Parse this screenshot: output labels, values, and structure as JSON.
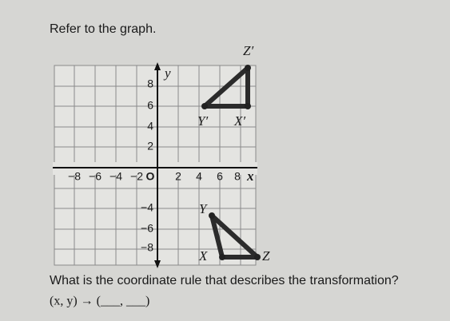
{
  "header": {
    "title": "Refer to the graph."
  },
  "graph": {
    "axis_labels": {
      "x": "x",
      "y": "y"
    },
    "x_tick_labels": [
      "−8",
      "−6",
      "−4",
      "−2",
      "2",
      "4",
      "6",
      "8"
    ],
    "origin_label": "O",
    "y_tick_labels": [
      "8",
      "6",
      "4",
      "2",
      "−4",
      "−6",
      "−8"
    ],
    "point_labels": [
      "Z′",
      "Y′",
      "X′",
      "Y",
      "X",
      "Z"
    ]
  },
  "question": "What is the coordinate rule that describes the transformation?",
  "answer_template": "(x, y) → (___, ___)"
}
